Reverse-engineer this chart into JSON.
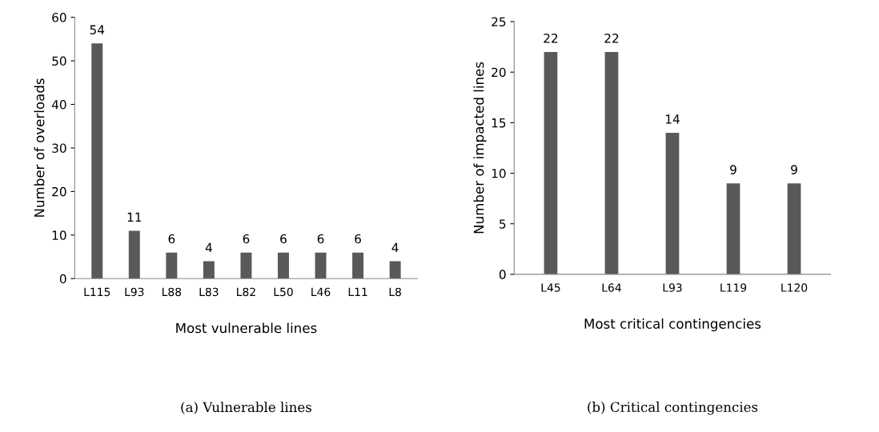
{
  "chart_data": [
    {
      "type": "bar",
      "xlabel": "Most vulnerable lines",
      "ylabel": "Number of overloads",
      "categories": [
        "L115",
        "L93",
        "L88",
        "L83",
        "L82",
        "L50",
        "L46",
        "L11",
        "L8"
      ],
      "values": [
        54,
        11,
        6,
        4,
        6,
        6,
        6,
        6,
        4
      ],
      "color": "#595959",
      "ylim": [
        0,
        60
      ],
      "yticks": [
        0,
        10,
        20,
        30,
        40,
        50,
        60
      ],
      "data_labels": true,
      "grid": false,
      "annotations": [
        "(a) Vulnerable lines"
      ]
    },
    {
      "type": "bar",
      "xlabel": "Most critical contingencies",
      "ylabel": "Number of impacted lines",
      "categories": [
        "L45",
        "L64",
        "L93",
        "L119",
        "L120"
      ],
      "values": [
        22,
        22,
        14,
        9,
        9
      ],
      "color": "#595959",
      "ylim": [
        0,
        25
      ],
      "yticks": [
        0,
        5,
        10,
        15,
        20,
        25
      ],
      "data_labels": true,
      "grid": false,
      "annotations": [
        "(b) Critical contingencies"
      ]
    }
  ]
}
